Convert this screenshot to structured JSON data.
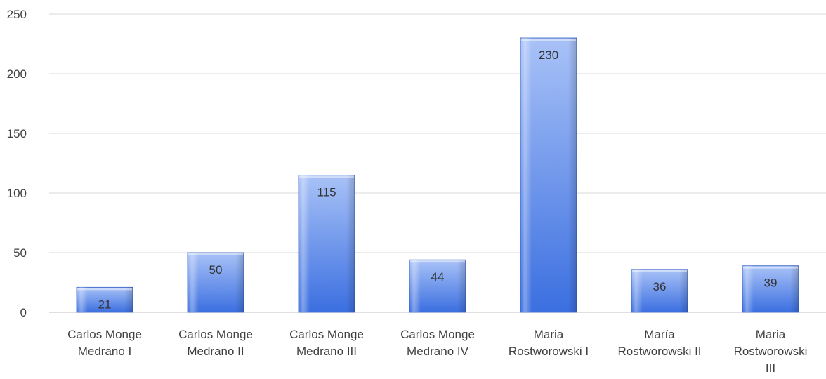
{
  "chart_data": {
    "type": "bar",
    "categories": [
      [
        "Carlos Monge",
        "Medrano I"
      ],
      [
        "Carlos Monge",
        "Medrano II"
      ],
      [
        "Carlos Monge",
        "Medrano III"
      ],
      [
        "Carlos Monge",
        "Medrano IV"
      ],
      [
        "Maria",
        "Rostworowski I"
      ],
      [
        "María",
        "Rostworowski II"
      ],
      [
        "Maria",
        "Rostworowski",
        "III"
      ]
    ],
    "values": [
      21,
      50,
      115,
      44,
      230,
      36,
      39
    ],
    "data_labels": [
      "21",
      "50",
      "115",
      "44",
      "230",
      "36",
      "39"
    ],
    "title": "",
    "xlabel": "",
    "ylabel": "",
    "ylim": [
      0,
      250
    ],
    "yticks": [
      0,
      50,
      100,
      150,
      200,
      250
    ],
    "grid": true,
    "legend": "none",
    "colors": {
      "bar_light": "#9bb7f5",
      "bar_dark": "#3a6fe0",
      "bar_edge": "#2f5cc4",
      "grid": "#d9d9d9",
      "axis": "#bfbfbf"
    }
  }
}
